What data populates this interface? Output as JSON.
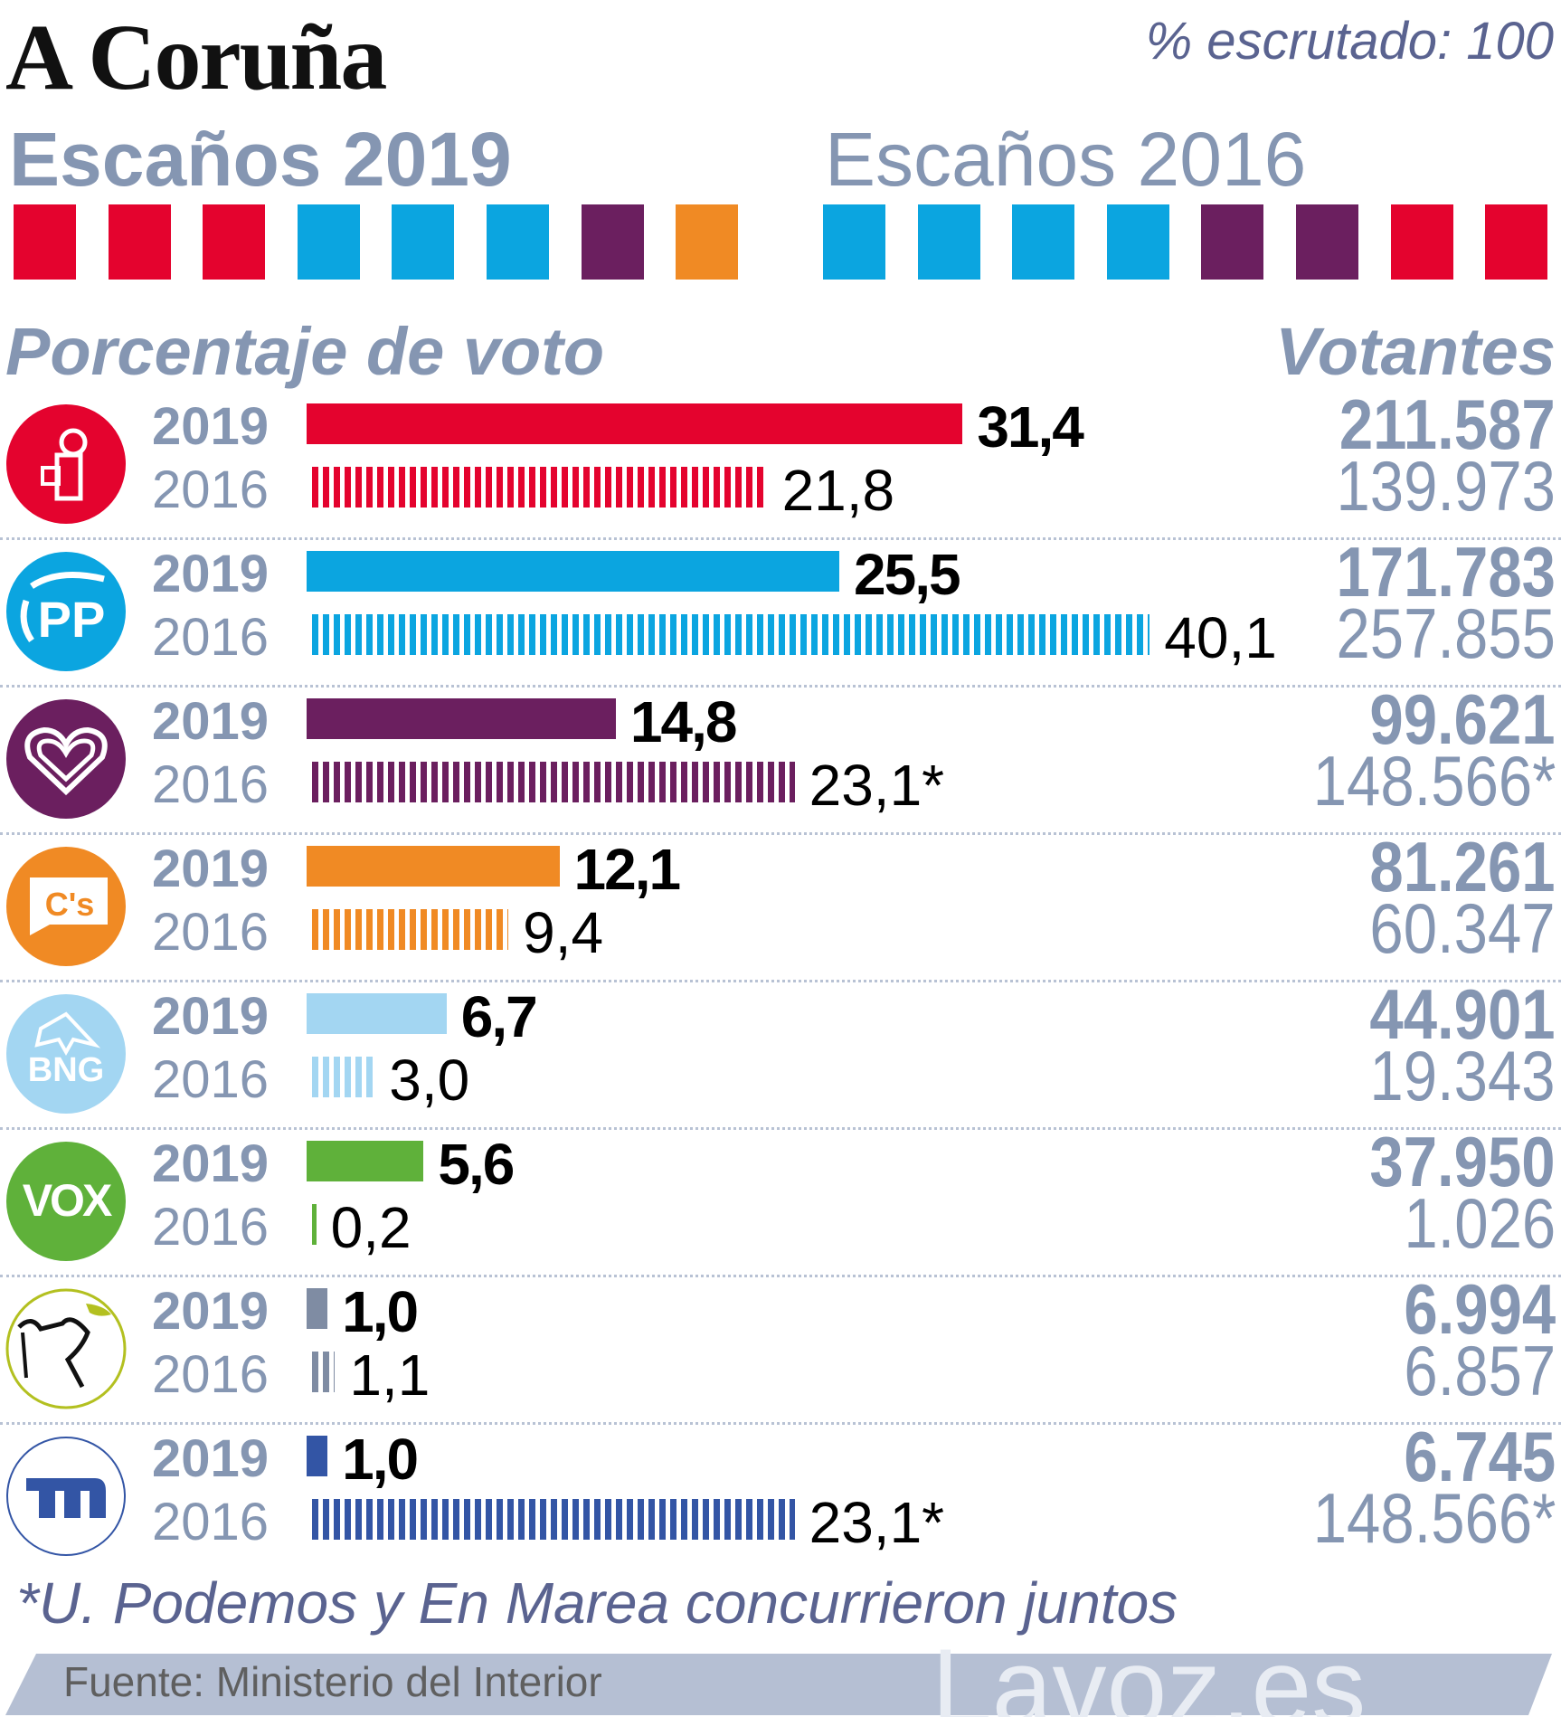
{
  "header": {
    "title": "A Coruña",
    "scrutinized": "% escrutado: 100",
    "seats_2019_title": "Escaños 2019",
    "seats_2016_title": "Escaños 2016",
    "vote_pct_title": "Porcentaje de voto",
    "voters_title": "Votantes"
  },
  "colors": {
    "PSOE": "#e4032e",
    "PP": "#0ba5e0",
    "Podemos": "#6b1f5f",
    "Cs": "#f08a24",
    "BNG": "#a3d6f2",
    "Vox": "#5fb13a",
    "PACMA": "#7f8ca3",
    "EnMarea": "#3355a5"
  },
  "seats": {
    "2019": [
      "PSOE",
      "PSOE",
      "PSOE",
      "PP",
      "PP",
      "PP",
      "Podemos",
      "Cs"
    ],
    "2016": [
      "PP",
      "PP",
      "PP",
      "PP",
      "Podemos",
      "Podemos",
      "PSOE",
      "PSOE"
    ]
  },
  "chart_data": {
    "type": "bar",
    "categories": [
      "PSOE",
      "PP",
      "Unidas Podemos",
      "Ciudadanos",
      "BNG",
      "Vox",
      "PACMA",
      "En Marea"
    ],
    "series": [
      {
        "name": "2019",
        "values": [
          31.4,
          25.5,
          14.8,
          12.1,
          6.7,
          5.6,
          1.0,
          1.0
        ]
      },
      {
        "name": "2016",
        "values": [
          21.8,
          40.1,
          23.1,
          9.4,
          3.0,
          0.2,
          1.1,
          23.1
        ]
      }
    ],
    "xlabel": "",
    "ylabel": "",
    "xlim": [
      0,
      45
    ]
  },
  "rows": [
    {
      "party": "PSOE",
      "logo": "psoe-logo",
      "y19": "2019",
      "y16": "2016",
      "v19": "31,4",
      "v16": "21,8",
      "n19": 31.4,
      "n16": 21.8,
      "vot19": "211.587",
      "vot16": "139.973"
    },
    {
      "party": "PP",
      "logo": "pp-logo",
      "y19": "2019",
      "y16": "2016",
      "v19": "25,5",
      "v16": "40,1",
      "n19": 25.5,
      "n16": 40.1,
      "vot19": "171.783",
      "vot16": "257.855"
    },
    {
      "party": "Podemos",
      "logo": "podemos-logo",
      "y19": "2019",
      "y16": "2016",
      "v19": "14,8",
      "v16": "23,1*",
      "n19": 14.8,
      "n16": 23.1,
      "vot19": "99.621",
      "vot16": "148.566*"
    },
    {
      "party": "Cs",
      "logo": "cs-logo",
      "y19": "2019",
      "y16": "2016",
      "v19": "12,1",
      "v16": "9,4",
      "n19": 12.1,
      "n16": 9.4,
      "vot19": "81.261",
      "vot16": "60.347"
    },
    {
      "party": "BNG",
      "logo": "bng-logo",
      "y19": "2019",
      "y16": "2016",
      "v19": "6,7",
      "v16": "3,0",
      "n19": 6.7,
      "n16": 3.0,
      "vot19": "44.901",
      "vot16": "19.343"
    },
    {
      "party": "Vox",
      "logo": "vox-logo",
      "y19": "2019",
      "y16": "2016",
      "v19": "5,6",
      "v16": "0,2",
      "n19": 5.6,
      "n16": 0.2,
      "vot19": "37.950",
      "vot16": "1.026"
    },
    {
      "party": "PACMA",
      "logo": "pacma-logo",
      "y19": "2019",
      "y16": "2016",
      "v19": "1,0",
      "v16": "1,1",
      "n19": 1.0,
      "n16": 1.1,
      "vot19": "6.994",
      "vot16": "6.857"
    },
    {
      "party": "EnMarea",
      "logo": "en-marea-logo",
      "y19": "2019",
      "y16": "2016",
      "v19": "1,0",
      "v16": "23,1*",
      "n19": 1.0,
      "n16": 23.1,
      "vot19": "6.745",
      "vot16": "148.566*"
    }
  ],
  "logo_text": {
    "cs": "C's",
    "bng": "BNG",
    "vox": "VOX",
    "pp": "PP"
  },
  "footnote": "*U. Podemos y En Marea concurrieron juntos",
  "footer": {
    "source": "Fuente: Ministerio del Interior",
    "brand": "Lavoz.es"
  }
}
